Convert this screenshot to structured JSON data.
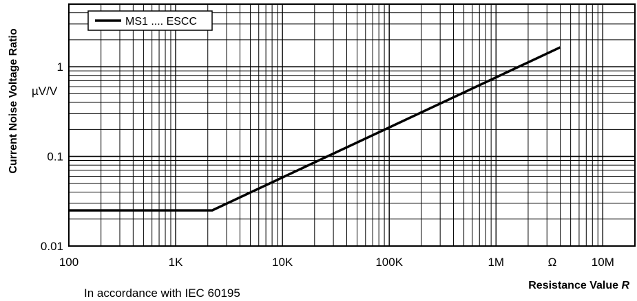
{
  "chart_data": {
    "type": "line",
    "title": "",
    "ylabel": "Current Noise Voltage Ratio",
    "yunit": "µV/V",
    "xlabel_prefix": "Resistance Value ",
    "xlabel_var": "R",
    "xunit": "Ω",
    "note": "In accordance with IEC 60195",
    "x_scale": "log",
    "y_scale": "log",
    "xlim": [
      100,
      20000000
    ],
    "ylim": [
      0.01,
      5
    ],
    "grid": true,
    "legend_position": "top-left",
    "x_ticks": [
      {
        "value": 100,
        "label": "100"
      },
      {
        "value": 1000,
        "label": "1K"
      },
      {
        "value": 10000,
        "label": "10K"
      },
      {
        "value": 100000,
        "label": "100K"
      },
      {
        "value": 1000000,
        "label": "1M"
      },
      {
        "value": 10000000,
        "label": "10M"
      }
    ],
    "y_ticks": [
      {
        "value": 0.01,
        "label": "0.01"
      },
      {
        "value": 0.1,
        "label": "0.1"
      },
      {
        "value": 1,
        "label": "1"
      }
    ],
    "series": [
      {
        "name": "MS1 .... ESCC",
        "color": "#000000",
        "x": [
          100,
          2200,
          4000000
        ],
        "y": [
          0.025,
          0.025,
          1.65
        ]
      }
    ]
  }
}
